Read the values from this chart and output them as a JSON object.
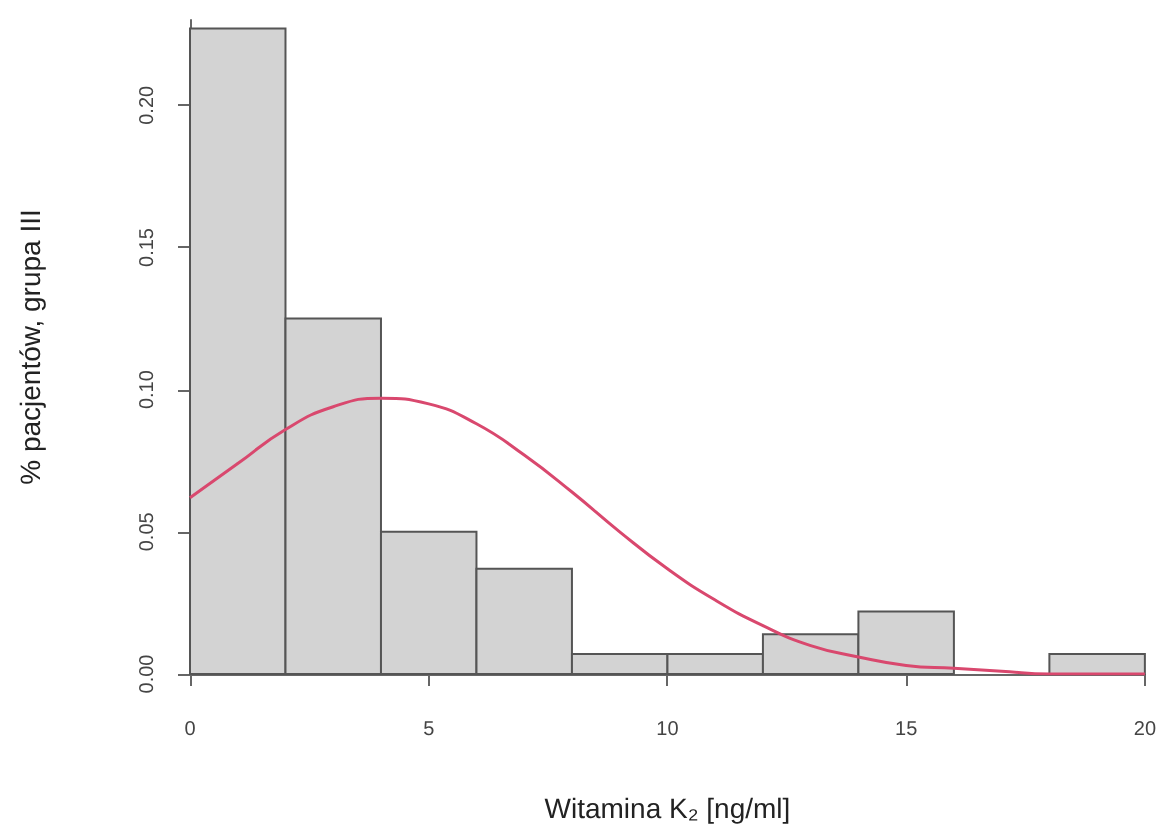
{
  "chart_data": {
    "type": "histogram",
    "xlabel": "Witamina K₂ [ng/ml]",
    "ylabel": "% pacjentów, grupa III",
    "xlim": [
      0,
      20
    ],
    "xticks": [
      0,
      5,
      10,
      15,
      20
    ],
    "ylim": [
      0,
      0.23
    ],
    "yticks": [
      {
        "value": 0,
        "label": "0.00"
      },
      {
        "value": 0.05,
        "label": "0.05"
      },
      {
        "value": 0.1,
        "label": "0.10"
      },
      {
        "value": 0.15,
        "label": "0.15"
      },
      {
        "value": 0.2,
        "label": "0.20"
      }
    ],
    "grid": false,
    "series": [
      {
        "color": "#d3d3d3",
        "bins": [
          0,
          2,
          4,
          6,
          8,
          10,
          12,
          14,
          16,
          18,
          20
        ],
        "values": [
          0.227,
          0.125,
          0.05,
          0.037,
          0.007,
          0.007,
          0.014,
          0.022,
          0,
          0.007
        ]
      },
      {
        "type": "line",
        "color": "#d9486e",
        "marker": "none",
        "x": [
          0,
          1,
          2,
          3,
          4,
          5,
          6,
          7,
          8,
          9,
          10,
          11,
          12,
          13,
          14,
          15,
          16,
          17,
          18,
          19,
          20
        ],
        "values": [
          0.062,
          0.074,
          0.086,
          0.094,
          0.097,
          0.095,
          0.088,
          0.077,
          0.064,
          0.05,
          0.037,
          0.026,
          0.017,
          0.01,
          0.006,
          0.003,
          0.002,
          0.001,
          0,
          0,
          0
        ]
      }
    ]
  }
}
